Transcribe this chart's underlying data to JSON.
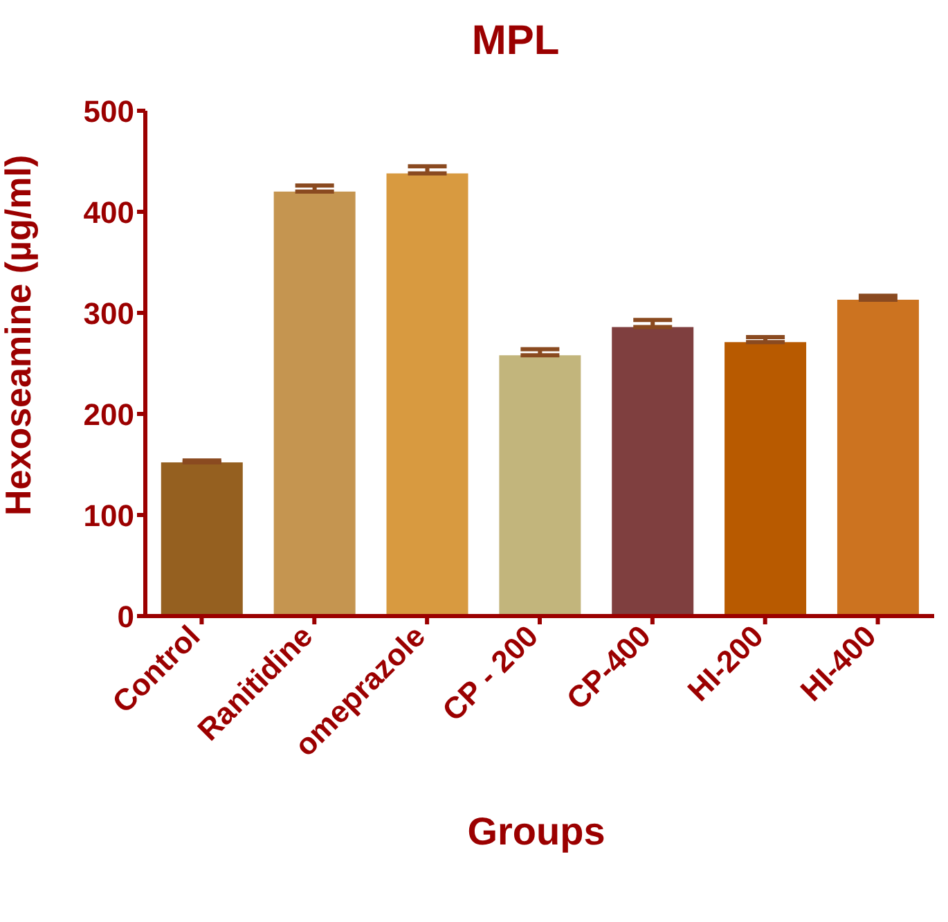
{
  "chart_data": {
    "type": "bar",
    "title": "MPL",
    "xlabel": "Groups",
    "ylabel": "Hexoseamine (µg/ml)",
    "categories": [
      "Control",
      "Ranitidine",
      "omeprazole",
      "CP - 200",
      "CP-400",
      "HI-200",
      "HI-400"
    ],
    "values": [
      152,
      420,
      438,
      258,
      286,
      271,
      313
    ],
    "errors": [
      [
        152,
        154
      ],
      [
        420,
        426
      ],
      [
        438,
        445
      ],
      [
        258,
        264
      ],
      [
        286,
        293
      ],
      [
        271,
        276
      ],
      [
        313,
        317
      ]
    ],
    "colors": [
      "#956020",
      "#c59550",
      "#d89a40",
      "#c2b57c",
      "#7f3f3f",
      "#b85a00",
      "#cc7320"
    ],
    "ylim": [
      0,
      500
    ],
    "yticks": [
      0,
      100,
      200,
      300,
      400,
      500
    ],
    "grid": false,
    "legend": false
  }
}
